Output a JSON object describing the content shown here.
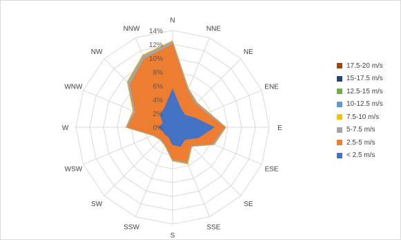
{
  "chart_data": {
    "type": "radar",
    "title": "",
    "directions": [
      "N",
      "NNE",
      "NE",
      "ENE",
      "E",
      "ESE",
      "SE",
      "SSE",
      "S",
      "SSW",
      "SW",
      "WSW",
      "W",
      "WNW",
      "NW",
      "NNW"
    ],
    "radial_ticks": [
      "0%",
      "2%",
      "4%",
      "6%",
      "8%",
      "10%",
      "12%",
      "14%"
    ],
    "radial_range": [
      0,
      14
    ],
    "units": "%",
    "stacked": true,
    "legend_position": "right",
    "series": [
      {
        "name": "< 2.5 m/s",
        "color": "#4472c4",
        "values": [
          5.5,
          3.0,
          2.5,
          3.5,
          6.0,
          4.0,
          2.5,
          3.0,
          2.5,
          1.5,
          1.5,
          1.5,
          2.0,
          1.5,
          2.5,
          3.0
        ]
      },
      {
        "name": "2.5-5 m/s",
        "color": "#ed7d31",
        "values": [
          6.5,
          2.7,
          2.2,
          1.8,
          1.5,
          2.2,
          1.2,
          2.4,
          2.1,
          1.2,
          0.9,
          1.4,
          4.5,
          4.3,
          6.2,
          7.7
        ]
      },
      {
        "name": "5-7.5 m/s",
        "color": "#a5a5a5",
        "values": [
          0.4,
          0.3,
          0.3,
          0.3,
          0.2,
          0.3,
          0.2,
          0.25,
          0.2,
          0.15,
          0.1,
          0.15,
          0.2,
          0.3,
          0.5,
          0.5
        ]
      },
      {
        "name": "7.5-10 m/s",
        "color": "#ffc000",
        "values": [
          0.1,
          0.05,
          0.05,
          0.05,
          0.05,
          0.05,
          0.05,
          0.1,
          0.1,
          0.05,
          0.05,
          0.05,
          0.05,
          0.1,
          0.1,
          0.1
        ]
      },
      {
        "name": "10-12.5 m/s",
        "color": "#5b9bd5",
        "values": [
          0,
          0,
          0,
          0,
          0,
          0,
          0,
          0,
          0,
          0,
          0,
          0,
          0,
          0,
          0,
          0
        ]
      },
      {
        "name": "12.5-15 m/s",
        "color": "#70ad47",
        "values": [
          0,
          0,
          0,
          0,
          0,
          0,
          0,
          0,
          0,
          0,
          0,
          0,
          0,
          0,
          0,
          0
        ]
      },
      {
        "name": "15-17.5 m/s",
        "color": "#264478",
        "values": [
          0,
          0,
          0,
          0,
          0,
          0,
          0,
          0,
          0,
          0,
          0,
          0,
          0,
          0,
          0,
          0
        ]
      },
      {
        "name": "17.5-20 m/s",
        "color": "#9e480e",
        "values": [
          0,
          0,
          0,
          0,
          0,
          0,
          0,
          0,
          0,
          0,
          0,
          0,
          0,
          0,
          0,
          0
        ]
      }
    ],
    "legend_order": [
      "17.5-20 m/s",
      "15-17.5 m/s",
      "12.5-15 m/s",
      "10-12.5 m/s",
      "7.5-10 m/s",
      "5-7.5 m/s",
      "2.5-5 m/s",
      "< 2.5 m/s"
    ],
    "grid": true
  }
}
